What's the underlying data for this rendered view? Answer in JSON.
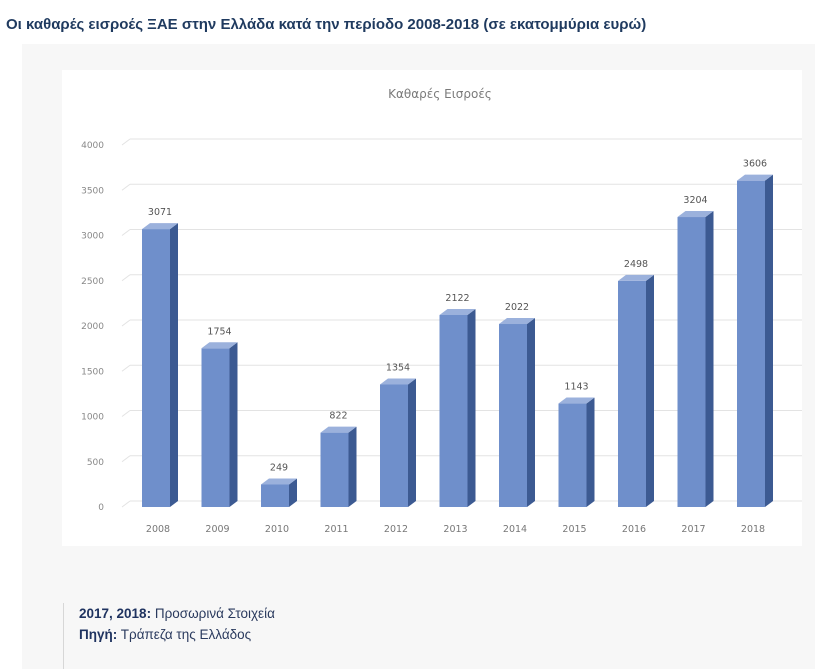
{
  "page": {
    "title": "Οι καθαρές εισροές ΞΑΕ στην Ελλάδα κατά την περίοδο 2008-2018 (σε εκατομμύρια ευρώ)"
  },
  "notes": {
    "provisional_label": "2017, 2018:",
    "provisional_text": "Προσωρινά Στοιχεία",
    "source_label": "Πηγή:",
    "source_text": "Τράπεζα της Ελλάδος"
  },
  "colors": {
    "bar_front": "#6f8fcb",
    "bar_top": "#9bb1dc",
    "bar_side": "#3c5a92",
    "gridline": "#e3e3e3"
  },
  "chart_data": {
    "type": "bar",
    "style": "3d-column",
    "title": "Καθαρές Εισροές",
    "xlabel": "",
    "ylabel": "",
    "categories": [
      "2008",
      "2009",
      "2010",
      "2011",
      "2012",
      "2013",
      "2014",
      "2015",
      "2016",
      "2017",
      "2018"
    ],
    "values": [
      3071,
      1754,
      249,
      822,
      1354,
      2122,
      2022,
      1143,
      2498,
      3204,
      3606
    ],
    "data_labels": [
      "3071",
      "1754",
      "249",
      "822",
      "1354",
      "2122",
      "2022",
      "1143",
      "2498",
      "3204",
      "3606"
    ],
    "y_ticks": [
      "0",
      "500",
      "1000",
      "1500",
      "2000",
      "2500",
      "3000",
      "3500",
      "4000"
    ],
    "ylim": [
      0,
      4000
    ],
    "grid": true,
    "legend": "none"
  }
}
